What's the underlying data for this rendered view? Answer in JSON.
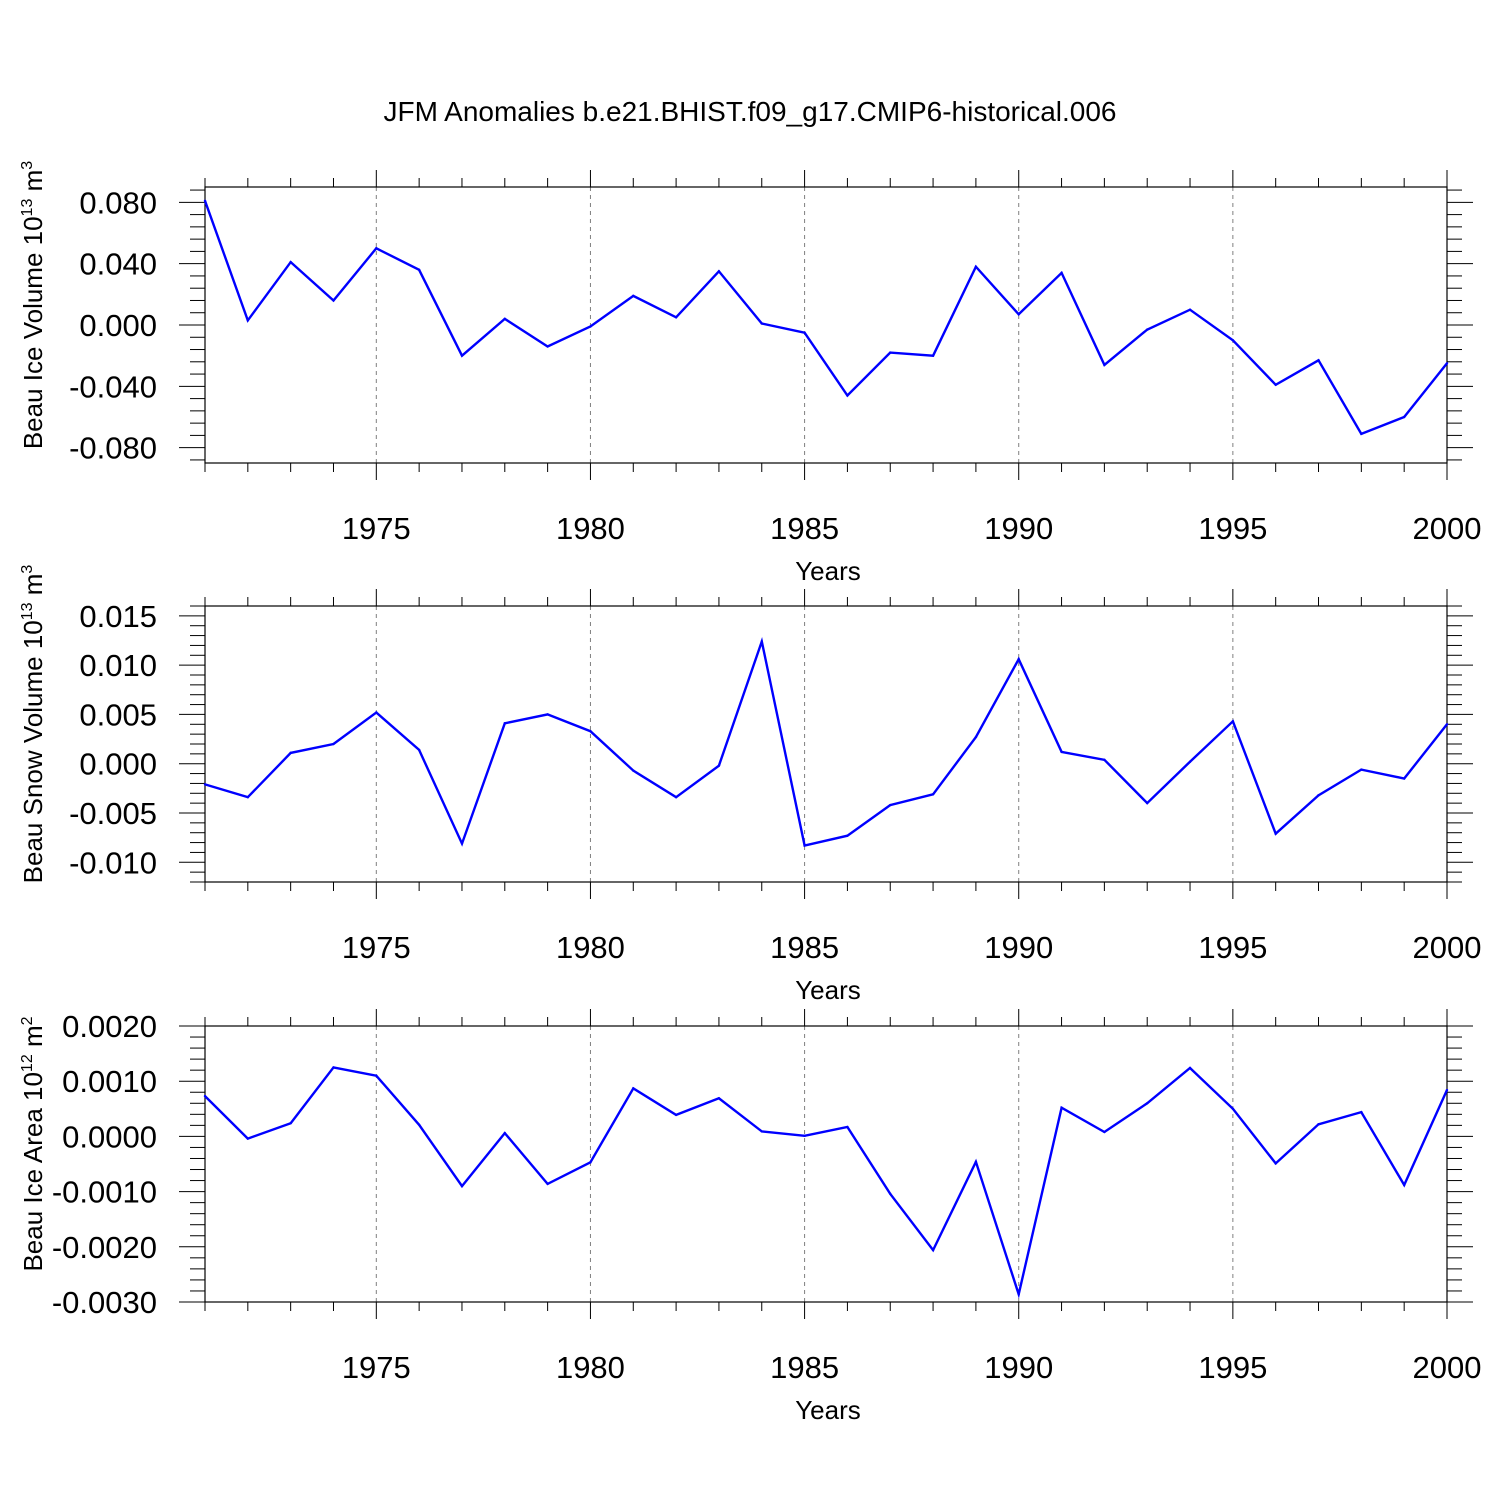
{
  "title": "JFM Anomalies b.e21.BHIST.f09_g17.CMIP6-historical.006",
  "colors": {
    "series": "#0000ff",
    "axis": "#000000",
    "grid": "#808080"
  },
  "chart_data": [
    {
      "type": "line",
      "xlabel": "Years",
      "ylabel": "Beau Ice Volume 10",
      "ylabel_exp": "13",
      "ylabel_unit": " m",
      "ylabel_unit_exp": "3",
      "xlim": [
        1971,
        2000
      ],
      "ylim": [
        -0.09,
        0.09
      ],
      "x_ticks": [
        1975,
        1980,
        1985,
        1990,
        1995,
        2000
      ],
      "y_ticks": [
        -0.08,
        -0.04,
        0.0,
        0.04,
        0.08
      ],
      "y_tick_labels": [
        "-0.080",
        "-0.040",
        "0.000",
        "0.040",
        "0.080"
      ],
      "grid": "vertical dashed at major x ticks",
      "x": [
        1971,
        1972,
        1973,
        1974,
        1975,
        1976,
        1977,
        1978,
        1979,
        1980,
        1981,
        1982,
        1983,
        1984,
        1985,
        1986,
        1987,
        1988,
        1989,
        1990,
        1991,
        1992,
        1993,
        1994,
        1995,
        1996,
        1997,
        1998,
        1999,
        2000
      ],
      "values": [
        0.081,
        0.003,
        0.041,
        0.016,
        0.05,
        0.036,
        -0.02,
        0.004,
        -0.014,
        -0.001,
        0.019,
        0.005,
        0.035,
        0.001,
        -0.005,
        -0.046,
        -0.018,
        -0.02,
        0.038,
        0.007,
        0.034,
        -0.026,
        -0.003,
        0.01,
        -0.01,
        -0.039,
        -0.023,
        -0.071,
        -0.06,
        -0.025
      ]
    },
    {
      "type": "line",
      "xlabel": "Years",
      "ylabel": "Beau Snow Volume 10",
      "ylabel_exp": "13",
      "ylabel_unit": " m",
      "ylabel_unit_exp": "3",
      "xlim": [
        1971,
        2000
      ],
      "ylim": [
        -0.012,
        0.016
      ],
      "x_ticks": [
        1975,
        1980,
        1985,
        1990,
        1995,
        2000
      ],
      "y_ticks": [
        -0.01,
        -0.005,
        0.0,
        0.005,
        0.01,
        0.015
      ],
      "y_tick_labels": [
        "-0.010",
        "-0.005",
        "0.000",
        "0.005",
        "0.010",
        "0.015"
      ],
      "grid": "vertical dashed at major x ticks",
      "x": [
        1971,
        1972,
        1973,
        1974,
        1975,
        1976,
        1977,
        1978,
        1979,
        1980,
        1981,
        1982,
        1983,
        1984,
        1985,
        1986,
        1987,
        1988,
        1989,
        1990,
        1991,
        1992,
        1993,
        1994,
        1995,
        1996,
        1997,
        1998,
        1999,
        2000
      ],
      "values": [
        -0.0021,
        -0.0034,
        0.0011,
        0.002,
        0.0052,
        0.0014,
        -0.0081,
        0.0041,
        0.005,
        0.0033,
        -0.0007,
        -0.0034,
        -0.0002,
        0.0124,
        -0.0083,
        -0.0073,
        -0.0042,
        -0.0031,
        0.0027,
        0.0106,
        0.0012,
        0.0004,
        -0.004,
        0.0002,
        0.0043,
        -0.0071,
        -0.0032,
        -0.0006,
        -0.0015,
        0.004
      ]
    },
    {
      "type": "line",
      "xlabel": "Years",
      "ylabel": "Beau Ice Area 10",
      "ylabel_exp": "12",
      "ylabel_unit": " m",
      "ylabel_unit_exp": "2",
      "xlim": [
        1971,
        2000
      ],
      "ylim": [
        -0.003,
        0.002
      ],
      "x_ticks": [
        1975,
        1980,
        1985,
        1990,
        1995,
        2000
      ],
      "y_ticks": [
        -0.003,
        -0.002,
        -0.001,
        0.0,
        0.001,
        0.002
      ],
      "y_tick_labels": [
        "-0.0030",
        "-0.0020",
        "-0.0010",
        "0.0000",
        "0.0010",
        "0.0020"
      ],
      "grid": "vertical dashed at major x ticks",
      "x": [
        1971,
        1972,
        1973,
        1974,
        1975,
        1976,
        1977,
        1978,
        1979,
        1980,
        1981,
        1982,
        1983,
        1984,
        1985,
        1986,
        1987,
        1988,
        1989,
        1990,
        1991,
        1992,
        1993,
        1994,
        1995,
        1996,
        1997,
        1998,
        1999,
        2000
      ],
      "values": [
        0.00073,
        -4e-05,
        0.00024,
        0.00125,
        0.0011,
        0.00021,
        -0.0009,
        6e-05,
        -0.00086,
        -0.00047,
        0.00087,
        0.00039,
        0.00069,
        9e-05,
        1e-05,
        0.00017,
        -0.00104,
        -0.00206,
        -0.00046,
        -0.00286,
        0.00052,
        8e-05,
        0.0006,
        0.00124,
        0.0005,
        -0.00049,
        0.00022,
        0.00044,
        -0.00088,
        0.00084
      ]
    }
  ]
}
